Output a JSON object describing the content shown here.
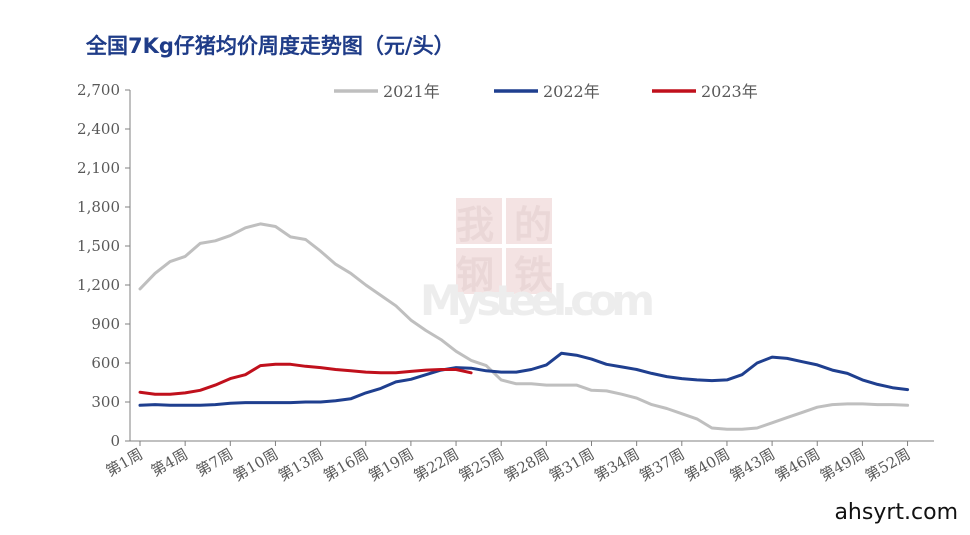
{
  "title": "全国7Kg仔猪均价周度走势图（元/头）",
  "watermark": {
    "cn": [
      "我的",
      "钢铁"
    ],
    "en": "Mysteel.com"
  },
  "site_label": "ahsyrt.com",
  "chart_data": {
    "type": "line",
    "title": "全国7Kg仔猪均价周度走势图（元/头）",
    "xlabel": "",
    "ylabel": "",
    "ylim": [
      0,
      2700
    ],
    "yticks": [
      0,
      300,
      600,
      900,
      1200,
      1500,
      1800,
      2100,
      2400,
      2700
    ],
    "ytick_labels": [
      "0",
      "300",
      "600",
      "900",
      "1,200",
      "1,500",
      "1,800",
      "2,100",
      "2,400",
      "2,700"
    ],
    "xtick_labels": [
      "第1周",
      "第4周",
      "第7周",
      "第10周",
      "第13周",
      "第16周",
      "第19周",
      "第22周",
      "第25周",
      "第28周",
      "第31周",
      "第34周",
      "第37周",
      "第40周",
      "第43周",
      "第46周",
      "第49周",
      "第52周"
    ],
    "grid": false,
    "legend_position": "top",
    "series": [
      {
        "name": "2021年",
        "color": "#bfbfbf",
        "values": [
          1170,
          1290,
          1380,
          1420,
          1520,
          1540,
          1580,
          1640,
          1670,
          1650,
          1570,
          1550,
          1460,
          1360,
          1290,
          1200,
          1120,
          1040,
          930,
          850,
          780,
          690,
          620,
          580,
          470,
          440,
          440,
          430,
          430,
          430,
          390,
          385,
          360,
          330,
          280,
          250,
          210,
          170,
          100,
          90,
          90,
          100,
          140,
          180,
          220,
          260,
          280,
          285,
          285,
          280,
          280,
          275
        ]
      },
      {
        "name": "2022年",
        "color": "#1f3f8f",
        "values": [
          275,
          280,
          275,
          275,
          275,
          280,
          290,
          295,
          295,
          295,
          295,
          300,
          300,
          310,
          325,
          370,
          405,
          455,
          475,
          510,
          545,
          565,
          560,
          540,
          530,
          530,
          550,
          585,
          675,
          660,
          630,
          590,
          570,
          550,
          520,
          495,
          480,
          470,
          465,
          470,
          510,
          600,
          645,
          635,
          610,
          585,
          545,
          520,
          470,
          435,
          410,
          395
        ]
      },
      {
        "name": "2023年",
        "color": "#c0101c",
        "values": [
          375,
          360,
          360,
          370,
          390,
          430,
          480,
          510,
          580,
          590,
          590,
          575,
          565,
          550,
          540,
          530,
          525,
          525,
          535,
          545,
          550,
          550,
          525
        ]
      }
    ]
  }
}
